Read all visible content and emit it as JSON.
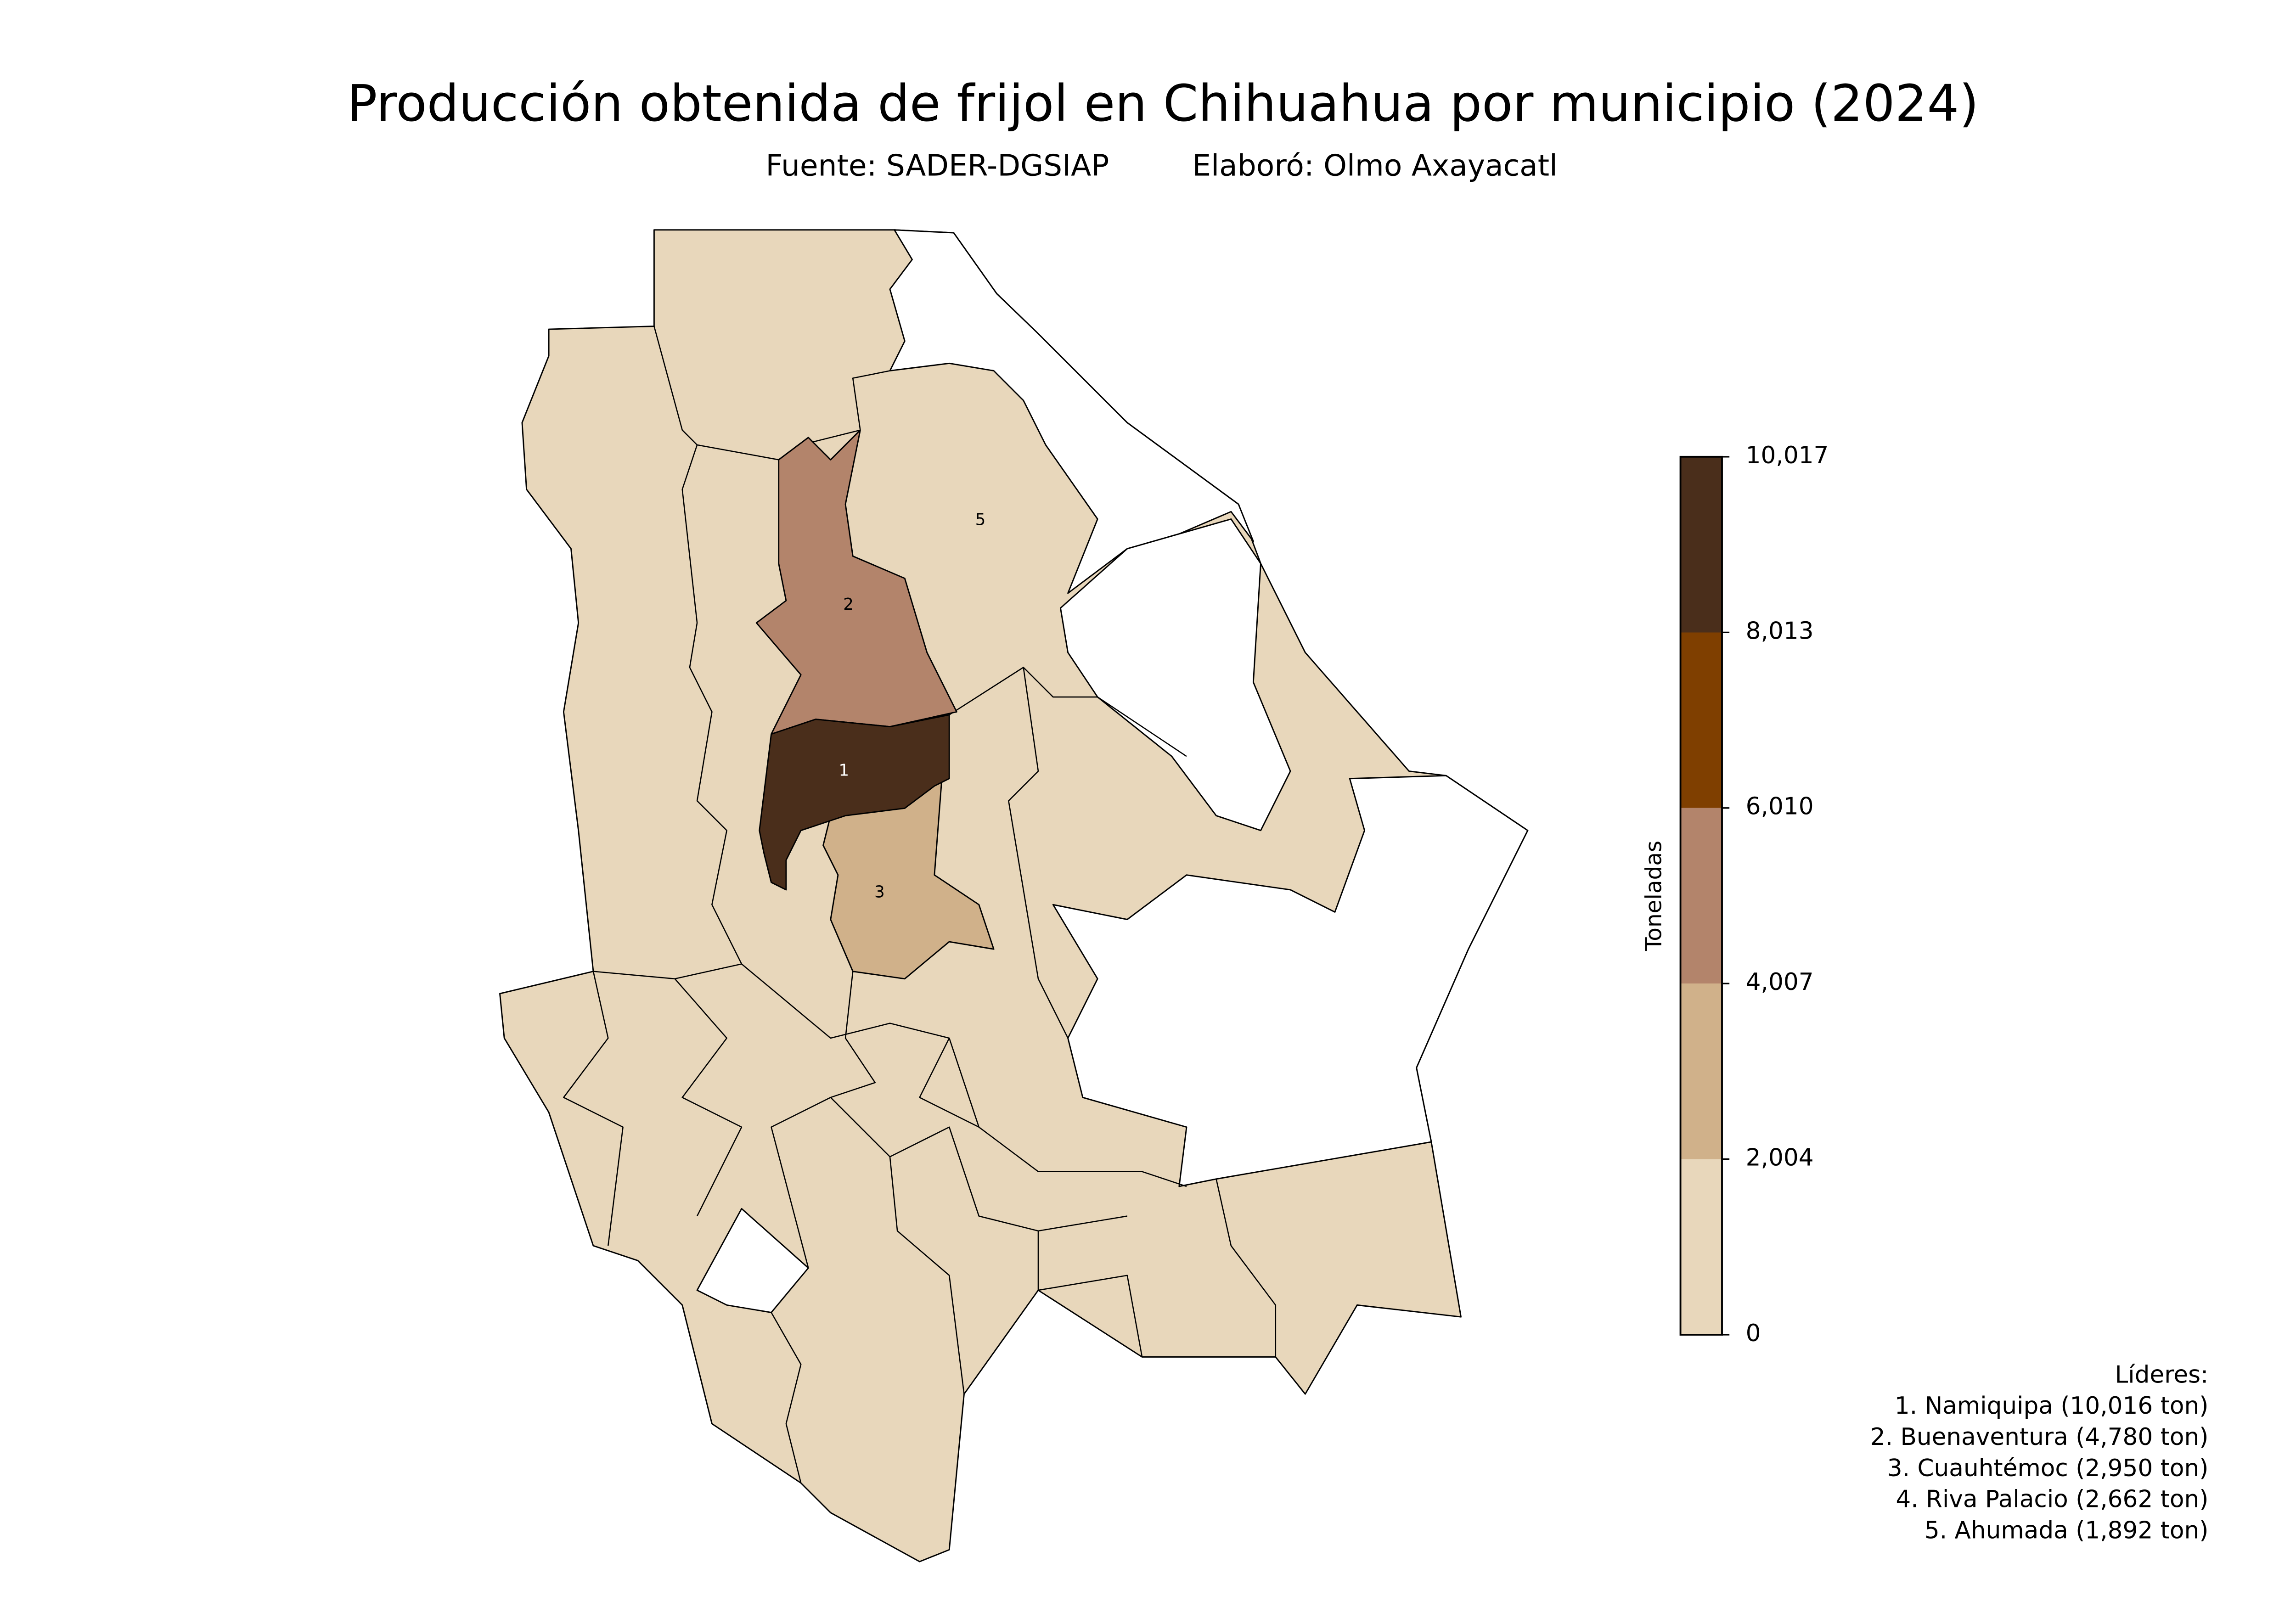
{
  "title": "Producción obtenida de frijol en Chihuahua por municipio (2024)",
  "source": "Fuente: SADER-DGSIAP",
  "author": "Elaboró: Olmo Axayacatl",
  "colorbar": {
    "label": "Toneladas",
    "lim": [
      0,
      10017
    ],
    "ticks": [
      0,
      {
        "value": 2004,
        "label": "2,004"
      },
      {
        "value": 4007,
        "label": "4,007"
      },
      {
        "value": 6010,
        "label": "6,010"
      },
      {
        "value": 8013,
        "label": "8,013"
      },
      {
        "value": 10017,
        "label": "10,017"
      }
    ],
    "colors": [
      "#e8d7bb",
      "#d0b18a",
      "#b3846b",
      "#7f3f00",
      "#4a2e1b"
    ]
  },
  "map_labels": [
    "1",
    "2",
    "3",
    "5"
  ],
  "leaders_title": "Líderes:",
  "leaders": [
    "1. Namiquipa (10,016 ton)",
    "2. Buenaventura (4,780 ton)",
    "3. Cuauhtémoc (2,950 ton)",
    "4. Riva Palacio (2,662 ton)",
    "5. Ahumada (1,892 ton)"
  ]
}
